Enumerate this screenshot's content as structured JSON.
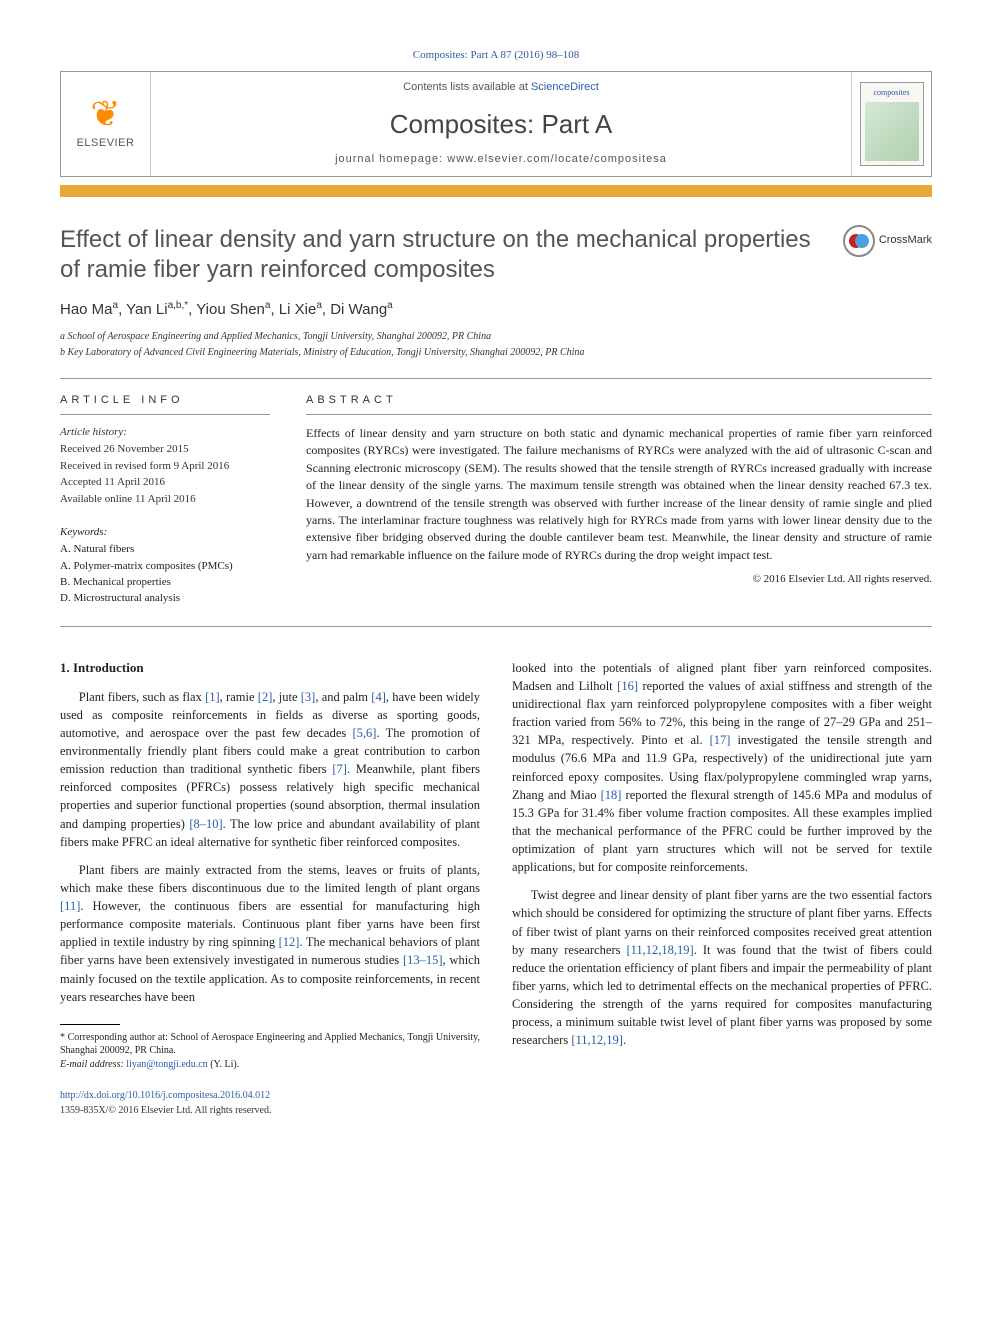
{
  "citation": "Composites: Part A 87 (2016) 98–108",
  "header": {
    "contents_prefix": "Contents lists available at ",
    "contents_link": "ScienceDirect",
    "journal": "Composites: Part A",
    "homepage_prefix": "journal homepage: ",
    "homepage_url": "www.elsevier.com/locate/compositesa",
    "publisher_logo_text": "ELSEVIER",
    "cover_label": "composites"
  },
  "title": "Effect of linear density and yarn structure on the mechanical properties of ramie fiber yarn reinforced composites",
  "crossmark_label": "CrossMark",
  "authors_html": "Hao Ma<sup>a</sup>, Yan Li<sup>a,b,*</sup>, Yiou Shen<sup>a</sup>, Li Xie<sup>a</sup>, Di Wang<sup>a</sup>",
  "affiliations": [
    "a School of Aerospace Engineering and Applied Mechanics, Tongji University, Shanghai 200092, PR China",
    "b Key Laboratory of Advanced Civil Engineering Materials, Ministry of Education, Tongji University, Shanghai 200092, PR China"
  ],
  "info_label": "ARTICLE INFO",
  "abstract_label": "ABSTRACT",
  "history": {
    "label": "Article history:",
    "items": [
      "Received 26 November 2015",
      "Received in revised form 9 April 2016",
      "Accepted 11 April 2016",
      "Available online 11 April 2016"
    ]
  },
  "keywords": {
    "label": "Keywords:",
    "items": [
      "A. Natural fibers",
      "A. Polymer-matrix composites (PMCs)",
      "B. Mechanical properties",
      "D. Microstructural analysis"
    ]
  },
  "abstract": "Effects of linear density and yarn structure on both static and dynamic mechanical properties of ramie fiber yarn reinforced composites (RYRCs) were investigated. The failure mechanisms of RYRCs were analyzed with the aid of ultrasonic C-scan and Scanning electronic microscopy (SEM). The results showed that the tensile strength of RYRCs increased gradually with increase of the linear density of the single yarns. The maximum tensile strength was obtained when the linear density reached 67.3 tex. However, a downtrend of the tensile strength was observed with further increase of the linear density of ramie single and plied yarns. The interlaminar fracture toughness was relatively high for RYRCs made from yarns with lower linear density due to the extensive fiber bridging observed during the double cantilever beam test. Meanwhile, the linear density and structure of ramie yarn had remarkable influence on the failure mode of RYRCs during the drop weight impact test.",
  "copyright": "© 2016 Elsevier Ltd. All rights reserved.",
  "section1": {
    "heading": "1. Introduction",
    "p1_pre": "Plant fibers, such as flax ",
    "p1_r1": "[1]",
    "p1_m1": ", ramie ",
    "p1_r2": "[2]",
    "p1_m2": ", jute ",
    "p1_r3": "[3]",
    "p1_m3": ", and palm ",
    "p1_r4": "[4]",
    "p1_m4": ", have been widely used as composite reinforcements in fields as diverse as sporting goods, automotive, and aerospace over the past few decades ",
    "p1_r5": "[5,6]",
    "p1_m5": ". The promotion of environmentally friendly plant fibers could make a great contribution to carbon emission reduction than traditional synthetic fibers ",
    "p1_r6": "[7]",
    "p1_m6": ". Meanwhile, plant fibers reinforced composites (PFRCs) possess relatively high specific mechanical properties and superior functional properties (sound absorption, thermal insulation and damping properties) ",
    "p1_r7": "[8–10]",
    "p1_m7": ". The low price and abundant availability of plant fibers make PFRC an ideal alternative for synthetic fiber reinforced composites.",
    "p2_pre": "Plant fibers are mainly extracted from the stems, leaves or fruits of plants, which make these fibers discontinuous due to the limited length of plant organs ",
    "p2_r1": "[11]",
    "p2_m1": ". However, the continuous fibers are essential for manufacturing high performance composite materials. Continuous plant fiber yarns have been first applied in textile industry by ring spinning ",
    "p2_r2": "[12]",
    "p2_m2": ". The mechanical behaviors of plant fiber yarns have been extensively investigated in numerous studies ",
    "p2_r3": "[13–15]",
    "p2_m3": ", which mainly focused on the textile application. As to composite reinforcements, in recent years researches have been",
    "p3_pre": "looked into the potentials of aligned plant fiber yarn reinforced composites. Madsen and Lilholt ",
    "p3_r1": "[16]",
    "p3_m1": " reported the values of axial stiffness and strength of the unidirectional flax yarn reinforced polypropylene composites with a fiber weight fraction varied from 56% to 72%, this being in the range of 27–29 GPa and 251–321 MPa, respectively. Pinto et al. ",
    "p3_r2": "[17]",
    "p3_m2": " investigated the tensile strength and modulus (76.6 MPa and 11.9 GPa, respectively) of the unidirectional jute yarn reinforced epoxy composites. Using flax/polypropylene commingled wrap yarns, Zhang and Miao ",
    "p3_r3": "[18]",
    "p3_m3": " reported the flexural strength of 145.6 MPa and modulus of 15.3 GPa for 31.4% fiber volume fraction composites. All these examples implied that the mechanical performance of the PFRC could be further improved by the optimization of plant yarn structures which will not be served for textile applications, but for composite reinforcements.",
    "p4_pre": "Twist degree and linear density of plant fiber yarns are the two essential factors which should be considered for optimizing the structure of plant fiber yarns. Effects of fiber twist of plant yarns on their reinforced composites received great attention by many researchers ",
    "p4_r1": "[11,12,18,19]",
    "p4_m1": ". It was found that the twist of fibers could reduce the orientation efficiency of plant fibers and impair the permeability of plant fiber yarns, which led to detrimental effects on the mechanical properties of PFRC. Considering the strength of the yarns required for composites manufacturing process, a minimum suitable twist level of plant fiber yarns was proposed by some researchers ",
    "p4_r2": "[11,12,19]",
    "p4_m2": "."
  },
  "footnote": {
    "corr": "* Corresponding author at: School of Aerospace Engineering and Applied Mechanics, Tongji University, Shanghai 200092, PR China.",
    "email_label": "E-mail address: ",
    "email": "liyan@tongji.edu.cn",
    "email_who": " (Y. Li)."
  },
  "footer": {
    "doi": "http://dx.doi.org/10.1016/j.compositesa.2016.04.012",
    "issn_line": "1359-835X/© 2016 Elsevier Ltd. All rights reserved."
  },
  "colors": {
    "link": "#2a5caa",
    "gold": "#e6a836",
    "logo_orange": "#ff8c00"
  }
}
